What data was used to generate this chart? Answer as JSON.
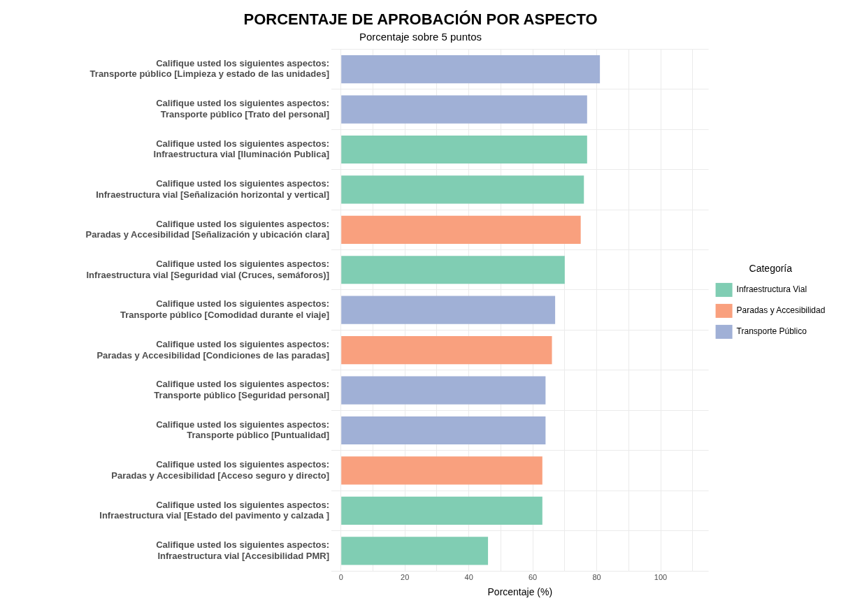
{
  "chart_data": {
    "type": "bar",
    "orientation": "horizontal",
    "stacked": true,
    "title": "PORCENTAJE DE APROBACIÓN POR ASPECTO",
    "subtitle": "Porcentaje sobre 5 puntos",
    "xlabel": "Porcentaje (%)",
    "legend_title": "Categoría",
    "legend": "right",
    "grid": true,
    "categories": [
      "Califique usted los siguientes aspectos:\nTransporte público [Limpieza y estado de las unidades]",
      "Califique usted los siguientes aspectos:\nTransporte público [Trato del personal]",
      "Califique usted los siguientes aspectos:\nInfraestructura vial [Iluminación Publica]",
      "Califique usted los siguientes aspectos:\nInfraestructura vial [Señalización horizontal y vertical]",
      "Califique usted los siguientes aspectos:\nParadas y Accesibilidad [Señalización y ubicación clara]",
      "Califique usted los siguientes aspectos:\nInfraestructura vial [Seguridad vial (Cruces, semáforos)]",
      "Califique usted los siguientes aspectos:\nTransporte público [Comodidad durante el viaje]",
      "Califique usted los siguientes aspectos:\nParadas y Accesibilidad [Condiciones de las paradas]",
      "Califique usted los siguientes aspectos:\nTransporte público [Seguridad personal]",
      "Califique usted los siguientes aspectos:\nTransporte público [Puntualidad]",
      "Califique usted los siguientes aspectos:\nParadas y Accesibilidad [Acceso seguro y directo]",
      "Califique usted los siguientes aspectos:\nInfraestructura vial [Estado del pavimento y calzada ]",
      "Califique usted los siguientes aspectos:\nInfraestructura vial [Accesibilidad PMR]"
    ],
    "series": [
      {
        "name": "Infraestructura Vial",
        "color": "#80cdb3",
        "values": [
          null,
          null,
          77,
          76,
          null,
          70,
          null,
          null,
          null,
          null,
          null,
          63,
          46
        ]
      },
      {
        "name": "Paradas y Accesibilidad",
        "color": "#f9a07e",
        "values": [
          null,
          null,
          null,
          null,
          75,
          null,
          null,
          66,
          null,
          null,
          63,
          null,
          null
        ]
      },
      {
        "name": "Transporte Público",
        "color": "#a0b0d6",
        "values": [
          81,
          77,
          null,
          null,
          null,
          null,
          67,
          null,
          64,
          64,
          null,
          null,
          null
        ]
      }
    ],
    "xlim": [
      -3,
      115
    ],
    "xticks": [
      0,
      {
        "value": 10,
        "label": null
      },
      20,
      {
        "value": 30,
        "label": null
      },
      40,
      {
        "value": 50,
        "label": null
      },
      60,
      {
        "value": 70,
        "label": null
      },
      80,
      {
        "value": 90,
        "label": null
      },
      100,
      {
        "value": 110,
        "label": null
      }
    ]
  }
}
